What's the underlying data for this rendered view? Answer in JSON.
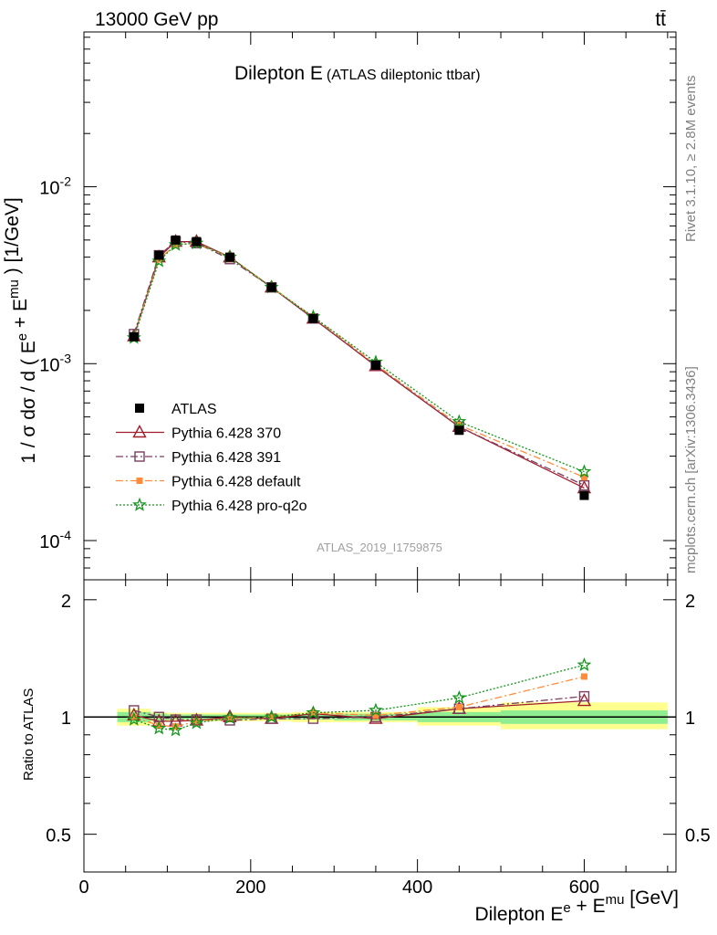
{
  "header": {
    "energy": "13000 GeV pp",
    "process": "tt̄"
  },
  "side_labels": {
    "rivet": "Rivet 3.1.10, ≥ 2.8M events",
    "mcplots": "mcplots.cern.ch [arXiv:1306.3436]"
  },
  "watermark": "ATLAS_2019_I1759875",
  "chart_data": [
    {
      "type": "line",
      "title": "Dilepton E",
      "subtitle": "(ATLAS dileptonic ttbar)",
      "xlabel": "Dilepton E^e + E^mu [GeV]",
      "ylabel": "1 / σ dσ / d ( E^e + E^mu ) [1/GeV]",
      "xlim": [
        0,
        710
      ],
      "ylim": [
        6e-05,
        0.075
      ],
      "yscale": "log",
      "x_ticks": [
        0,
        200,
        400,
        600
      ],
      "y_tick_labels": [
        {
          "value": 0.01,
          "base": "10",
          "exp": "-2"
        },
        {
          "value": 0.001,
          "base": "10",
          "exp": "-3"
        },
        {
          "value": 0.0001,
          "base": "10",
          "exp": "-4"
        }
      ],
      "legend_position": "lower-left",
      "x": [
        60,
        90,
        110,
        135,
        175,
        225,
        275,
        350,
        450,
        600
      ],
      "series": [
        {
          "name": "ATLAS",
          "color": "#000000",
          "marker": "square-filled",
          "line": "none",
          "values": [
            0.00142,
            0.0041,
            0.005,
            0.0049,
            0.004,
            0.0027,
            0.0018,
            0.00098,
            0.00042,
            0.00018
          ]
        },
        {
          "name": "Pythia 6.428 370",
          "color": "#a01e2c",
          "marker": "triangle-open",
          "line": "solid",
          "values": [
            0.00143,
            0.004,
            0.0049,
            0.0049,
            0.004,
            0.0027,
            0.0018,
            0.00097,
            0.00044,
            0.000198
          ]
        },
        {
          "name": "Pythia 6.428 391",
          "color": "#7b3f61",
          "marker": "square-open",
          "line": "dashdot",
          "values": [
            0.00147,
            0.0041,
            0.0049,
            0.0048,
            0.0039,
            0.0027,
            0.0018,
            0.00098,
            0.00044,
            0.000205
          ]
        },
        {
          "name": "Pythia 6.428 default",
          "color": "#ff8c3a",
          "marker": "square-filled-small",
          "line": "dashdot",
          "values": [
            0.00142,
            0.0039,
            0.0047,
            0.0048,
            0.004,
            0.0027,
            0.00184,
            0.00099,
            0.00045,
            0.000228
          ]
        },
        {
          "name": "Pythia 6.428 pro-q2o",
          "color": "#109618",
          "marker": "star-open",
          "line": "dotted",
          "values": [
            0.0014,
            0.0038,
            0.0047,
            0.0048,
            0.004,
            0.0027,
            0.00184,
            0.00102,
            0.00047,
            0.000245
          ]
        }
      ]
    },
    {
      "type": "line",
      "ylabel": "Ratio to ATLAS",
      "xlim": [
        0,
        710
      ],
      "ylim": [
        0.4,
        2.25
      ],
      "yscale": "log",
      "y_ticks": [
        0.5,
        1,
        2
      ],
      "y_tick_labels": [
        "0.5",
        "1",
        "2"
      ],
      "x_ticks": [
        0,
        200,
        400,
        600
      ],
      "uncertainty_bands": [
        {
          "x_range": [
            40,
            80
          ],
          "stat_low": 0.97,
          "stat_high": 1.03,
          "total_low": 0.95,
          "total_high": 1.05
        },
        {
          "x_range": [
            80,
            100
          ],
          "stat_low": 0.98,
          "stat_high": 1.02,
          "total_low": 0.97,
          "total_high": 1.03
        },
        {
          "x_range": [
            100,
            120
          ],
          "stat_low": 0.985,
          "stat_high": 1.015,
          "total_low": 0.975,
          "total_high": 1.025
        },
        {
          "x_range": [
            120,
            150
          ],
          "stat_low": 0.985,
          "stat_high": 1.015,
          "total_low": 0.975,
          "total_high": 1.025
        },
        {
          "x_range": [
            150,
            200
          ],
          "stat_low": 0.985,
          "stat_high": 1.015,
          "total_low": 0.975,
          "total_high": 1.025
        },
        {
          "x_range": [
            200,
            250
          ],
          "stat_low": 0.985,
          "stat_high": 1.015,
          "total_low": 0.975,
          "total_high": 1.025
        },
        {
          "x_range": [
            250,
            300
          ],
          "stat_low": 0.985,
          "stat_high": 1.015,
          "total_low": 0.97,
          "total_high": 1.03
        },
        {
          "x_range": [
            300,
            400
          ],
          "stat_low": 0.98,
          "stat_high": 1.02,
          "total_low": 0.97,
          "total_high": 1.03
        },
        {
          "x_range": [
            400,
            500
          ],
          "stat_low": 0.97,
          "stat_high": 1.03,
          "total_low": 0.95,
          "total_high": 1.06
        },
        {
          "x_range": [
            500,
            700
          ],
          "stat_low": 0.96,
          "stat_high": 1.04,
          "total_low": 0.93,
          "total_high": 1.09
        }
      ],
      "x": [
        60,
        90,
        110,
        135,
        175,
        225,
        275,
        350,
        450,
        600
      ],
      "series": [
        {
          "name": "Pythia 6.428 370",
          "color": "#a01e2c",
          "marker": "triangle-open",
          "line": "solid",
          "values": [
            1.01,
            0.975,
            0.975,
            0.98,
            1.0,
            0.99,
            1.02,
            0.99,
            1.05,
            1.1
          ]
        },
        {
          "name": "Pythia 6.428 391",
          "color": "#7b3f61",
          "marker": "square-open",
          "line": "dashdot",
          "values": [
            1.04,
            1.0,
            0.985,
            0.985,
            0.98,
            0.99,
            0.99,
            1.0,
            1.05,
            1.13
          ]
        },
        {
          "name": "Pythia 6.428 default",
          "color": "#ff8c3a",
          "marker": "square-filled-small",
          "line": "dashdot",
          "values": [
            1.0,
            0.95,
            0.945,
            0.975,
            0.99,
            1.0,
            1.025,
            1.01,
            1.06,
            1.27
          ]
        },
        {
          "name": "Pythia 6.428 pro-q2o",
          "color": "#109618",
          "marker": "star-open",
          "line": "dotted",
          "values": [
            0.985,
            0.935,
            0.925,
            0.965,
            0.995,
            1.0,
            1.025,
            1.04,
            1.12,
            1.36
          ]
        }
      ]
    }
  ]
}
